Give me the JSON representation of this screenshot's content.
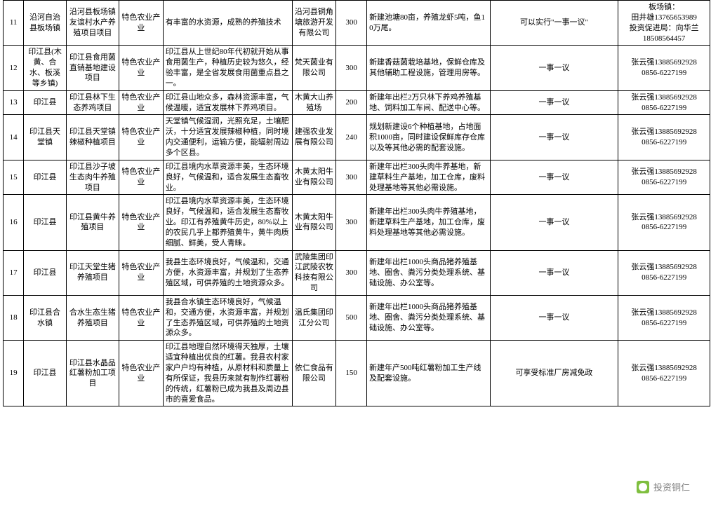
{
  "watermark_text": "投资铜仁",
  "rows": [
    {
      "n": "11",
      "region": "沿河自治县板场镇",
      "name": "沿河县板场镇友谊村水产养殖项目项目",
      "industry": "特色农业产业",
      "desc": "有丰富的水资源，成熟的养殖技术",
      "owner": "沿河县铜角塘旅游开发有限公司",
      "inv": "300",
      "content": "新建池塘80亩，养殖龙虾5吨，鱼10万尾。",
      "policy": "可以实行\"一事一议\"",
      "contact": "板场镇：\n田井雄13765653989\n投资促进局：向华兰\n18508564457"
    },
    {
      "n": "12",
      "region": "印江县(木黄、合水、板溪等乡镇)",
      "name": "印江县食用菌直销基地建设项目",
      "industry": "特色农业产业",
      "desc": "印江县从上世纪80年代初就开始从事食用菌生产，种植历史较为悠久，经验丰富，是全省发展食用菌重点县之一。",
      "owner": "梵天菌业有限公司",
      "inv": "300",
      "content": "新建香菇菌栽培基地，保鲜仓库及其他辅助工程设施，管理用房等。",
      "policy": "一事一议",
      "contact": "张云强13885692928\n0856-6227199"
    },
    {
      "n": "13",
      "region": "印江县",
      "name": "印江县林下生态养鸡项目",
      "industry": "特色农业产业",
      "desc": "印江县山地众多，森林资源丰富，气候温暖，适宜发展林下养鸡项目。",
      "owner": "木黄大山养殖场",
      "inv": "200",
      "content": "新建年出栏2万只林下养鸡养殖基地、饲料加工车间、配送中心等。",
      "policy": "一事一议",
      "contact": "张云强13885692928\n0856-6227199"
    },
    {
      "n": "14",
      "region": "印江县天堂镇",
      "name": "印江县天堂镇辣椒种植项目",
      "industry": "特色农业产业",
      "desc": "天堂镇气候湿润，光照充足，土壤肥沃，十分适宜发展辣椒种植，同时境内交通便利，运输方便，能辐射周边多个区县。",
      "owner": "建强农业发展有限公司",
      "inv": "240",
      "content": "规划新建设6个种植基地，占地面积1000亩，同时建设保鲜库存仓库以及等其他必需的配套设施。",
      "policy": "一事一议",
      "contact": "张云强13885692928\n0856-6227199"
    },
    {
      "n": "15",
      "region": "印江县",
      "name": "印江县沙子坡生态肉牛养殖项目",
      "industry": "特色农业产业",
      "desc": "印江县境内水草资源丰美，生态环境良好，气候温和，适合发展生态畜牧业。",
      "owner": "木黄太阳牛业有限公司",
      "inv": "300",
      "content": "新建年出栏300头肉牛养基地，新建草料生产基地，加工仓库，废料处理基地等其他必需设施。",
      "policy": "一事一议",
      "contact": "张云强13885692928\n0856-6227199"
    },
    {
      "n": "16",
      "region": "印江县",
      "name": "印江县黄牛养殖项目",
      "industry": "特色农业产业",
      "desc": "印江县境内水草资源丰美，生态环境良好，气候温和，适合发展生态畜牧业。印江有养殖黄牛历史，80%以上的农民几乎上都养殖黄牛，黄牛肉质细腻、鲜美，受人青睐。",
      "owner": "木黄太阳牛业有限公司",
      "inv": "300",
      "content": "新建年出栏300头肉牛养殖基地，新建草料生产基地，加工仓库，废料处理基地等其他必需设施。",
      "policy": "一事一议",
      "contact": "张云强13885692928\n0856-6227199"
    },
    {
      "n": "17",
      "region": "印江县",
      "name": "印江天堂生猪养殖项目",
      "industry": "特色农业产业",
      "desc": "我县生态环境良好，气候温和，交通方便，水资源丰富，并规划了生态养殖区域，可供养殖的土地资源众多。",
      "owner": "武陵集团印江武陵农牧科技有限公司",
      "inv": "300",
      "content": "新建年出栏1000头商品猪养殖基地、圈舍、粪污分类处理系统、基础设施、办公室等。",
      "policy": "一事一议",
      "contact": "张云强13885692928\n0856-6227199"
    },
    {
      "n": "18",
      "region": "印江县合水镇",
      "name": "合水生态生猪养殖项目",
      "industry": "特色农业产业",
      "desc": "我县合水镇生态环境良好，气候温和，交通方便，水资源丰富，并规划了生态养殖区域，可供养殖的土地资源众多。",
      "owner": "温氏集团印江分公司",
      "inv": "500",
      "content": "新建年出栏1000头商品猪养殖基地、圈舍、粪污分类处理系统、基础设施、办公室等。",
      "policy": "一事一议",
      "contact": "张云强13885692928\n0856-6227199"
    },
    {
      "n": "19",
      "region": "印江县",
      "name": "印江县水晶品红薯粉加工项目",
      "industry": "特色农业产业",
      "desc": "印江县地理自然环境得天独厚，土壤适宜种植出优良的红薯。我县农村家家户户均有种植，从原材料和质量上有所保证，我县历来就有制作红薯粉的传统，红薯粉已成为我县及周边县市的喜爱食品。",
      "owner": "依仁食品有限公司",
      "inv": "150",
      "content": "新建年产500吨红薯粉加工生产线及配套设施。",
      "policy": "可享受标准厂房减免政",
      "contact": "张云强13885692928\n0856-6227199"
    }
  ]
}
